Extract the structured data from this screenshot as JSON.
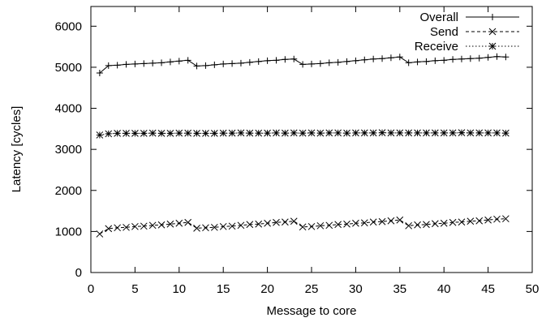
{
  "chart_data": {
    "type": "line",
    "title": "",
    "xlabel": "Message to core",
    "ylabel": "Latency [cycles]",
    "xlim": [
      0,
      50
    ],
    "ylim": [
      0,
      6500
    ],
    "xticks": [
      0,
      5,
      10,
      15,
      20,
      25,
      30,
      35,
      40,
      45,
      50
    ],
    "yticks": [
      0,
      1000,
      2000,
      3000,
      4000,
      5000,
      6000
    ],
    "grid": false,
    "legend_position": "top-right",
    "x": [
      1,
      2,
      3,
      4,
      5,
      6,
      7,
      8,
      9,
      10,
      11,
      12,
      13,
      14,
      15,
      16,
      17,
      18,
      19,
      20,
      21,
      22,
      23,
      24,
      25,
      26,
      27,
      28,
      29,
      30,
      31,
      32,
      33,
      34,
      35,
      36,
      37,
      38,
      39,
      40,
      41,
      42,
      43,
      44,
      45,
      46,
      47
    ],
    "series": [
      {
        "name": "Overall",
        "marker": "plus",
        "line": "solid",
        "color": "#000000",
        "values": [
          4860,
          5040,
          5050,
          5070,
          5080,
          5090,
          5100,
          5110,
          5130,
          5150,
          5170,
          5030,
          5040,
          5060,
          5080,
          5090,
          5100,
          5120,
          5140,
          5160,
          5170,
          5190,
          5200,
          5070,
          5080,
          5090,
          5110,
          5120,
          5140,
          5160,
          5180,
          5200,
          5210,
          5230,
          5250,
          5110,
          5130,
          5140,
          5160,
          5170,
          5190,
          5200,
          5210,
          5220,
          5240,
          5260,
          5250
        ]
      },
      {
        "name": "Send",
        "marker": "x",
        "line": "dashed",
        "color": "#000000",
        "values": [
          940,
          1070,
          1090,
          1100,
          1120,
          1130,
          1150,
          1160,
          1180,
          1200,
          1220,
          1080,
          1090,
          1100,
          1120,
          1130,
          1150,
          1170,
          1180,
          1200,
          1220,
          1230,
          1250,
          1110,
          1120,
          1140,
          1150,
          1170,
          1180,
          1200,
          1210,
          1230,
          1240,
          1260,
          1280,
          1140,
          1160,
          1170,
          1190,
          1200,
          1220,
          1230,
          1250,
          1260,
          1280,
          1300,
          1310
        ]
      },
      {
        "name": "Receive",
        "marker": "star",
        "line": "dotted",
        "color": "#000000",
        "values": [
          3350,
          3380,
          3390,
          3390,
          3390,
          3390,
          3395,
          3390,
          3390,
          3395,
          3395,
          3390,
          3390,
          3390,
          3395,
          3395,
          3400,
          3395,
          3395,
          3395,
          3400,
          3395,
          3400,
          3395,
          3400,
          3395,
          3400,
          3400,
          3395,
          3400,
          3400,
          3400,
          3405,
          3400,
          3400,
          3400,
          3400,
          3400,
          3400,
          3400,
          3400,
          3405,
          3400,
          3400,
          3400,
          3400,
          3395
        ]
      }
    ]
  }
}
